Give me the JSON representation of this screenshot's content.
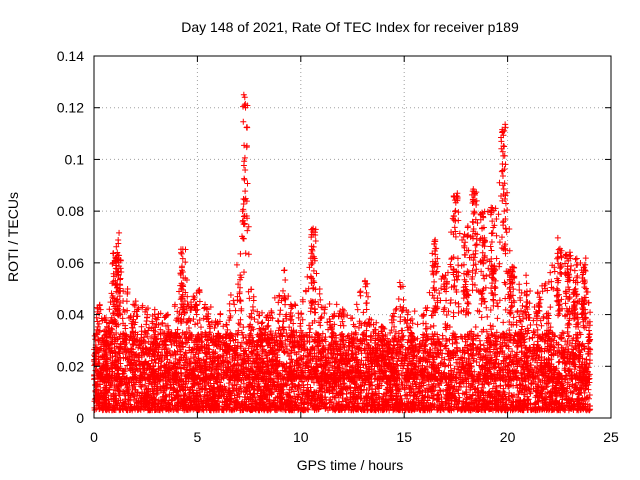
{
  "chart_data": {
    "type": "scatter",
    "title": "Day 148 of 2021, Rate Of TEC Index for receiver p189",
    "xlabel": "GPS time / hours",
    "ylabel": "ROTI / TECUs",
    "xlim": [
      0,
      25
    ],
    "ylim": [
      0,
      0.14
    ],
    "x_ticks": [
      0,
      5,
      10,
      15,
      20,
      25
    ],
    "x_tick_labels": [
      "0",
      "5",
      "10",
      "15",
      "20",
      "25"
    ],
    "y_ticks": [
      0,
      0.02,
      0.04,
      0.06,
      0.08,
      0.1,
      0.12,
      0.14
    ],
    "y_tick_labels": [
      "0",
      "0.02",
      "0.04",
      "0.06",
      "0.08",
      "0.1",
      "0.12",
      "0.14"
    ],
    "grid": true,
    "marker": "+",
    "color": "#ff0000",
    "series": [
      {
        "name": "ROTI",
        "description_points": "dense background values mostly 0.003-0.035 over 0-24 h; envelope of upper points below",
        "envelope_x": [
          0.0,
          0.2,
          0.5,
          0.8,
          1.0,
          1.2,
          1.5,
          1.8,
          2.0,
          2.5,
          3.0,
          3.5,
          4.0,
          4.3,
          4.6,
          5.0,
          5.5,
          6.0,
          6.5,
          7.0,
          7.3,
          7.6,
          8.0,
          8.5,
          9.0,
          9.2,
          9.6,
          10.0,
          10.6,
          11.0,
          11.5,
          12.0,
          12.5,
          13.2,
          13.6,
          14.0,
          14.5,
          14.9,
          15.3,
          16.0,
          16.5,
          17.0,
          17.5,
          18.0,
          18.4,
          18.8,
          19.3,
          19.8,
          20.2,
          20.6,
          21.0,
          21.5,
          22.0,
          22.5,
          22.9,
          23.3,
          23.7,
          24.0
        ],
        "envelope_y": [
          0.03,
          0.046,
          0.04,
          0.045,
          0.064,
          0.072,
          0.05,
          0.04,
          0.046,
          0.044,
          0.042,
          0.04,
          0.045,
          0.066,
          0.048,
          0.05,
          0.044,
          0.042,
          0.045,
          0.06,
          0.126,
          0.05,
          0.04,
          0.045,
          0.048,
          0.058,
          0.046,
          0.042,
          0.074,
          0.045,
          0.046,
          0.043,
          0.04,
          0.057,
          0.038,
          0.036,
          0.042,
          0.056,
          0.04,
          0.048,
          0.07,
          0.058,
          0.088,
          0.072,
          0.089,
          0.08,
          0.082,
          0.114,
          0.062,
          0.052,
          0.056,
          0.05,
          0.055,
          0.07,
          0.065,
          0.062,
          0.063,
          0.044
        ]
      }
    ]
  }
}
